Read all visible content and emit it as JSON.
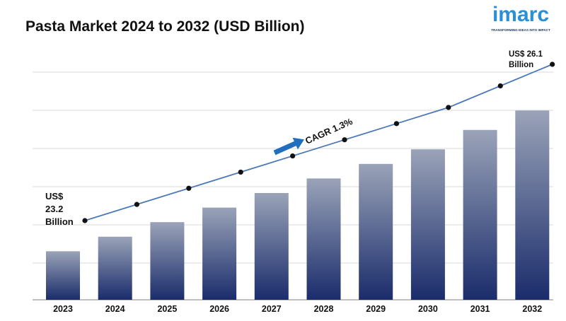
{
  "title": "Pasta Market 2024 to 2032 (USD Billion)",
  "logo": {
    "word": "imarc",
    "tagline": "TRANSFORMING IDEAS INTO IMPACT"
  },
  "colors": {
    "bar_top": "#9aa3b8",
    "bar_bottom": "#1a2c6b",
    "line": "#4a78b8",
    "point": "#111111",
    "grid": "#d9d9d9",
    "arrow": "#1f6fbd"
  },
  "chart_data": {
    "type": "bar",
    "title": "Pasta Market 2024 to 2032 (USD Billion)",
    "categories": [
      "2023",
      "2024",
      "2025",
      "2026",
      "2027",
      "2028",
      "2029",
      "2030",
      "2031",
      "2032"
    ],
    "series": [
      {
        "values": [
          23.2,
          23.5,
          23.8,
          24.1,
          24.4,
          24.7,
          25.0,
          25.3,
          25.7,
          26.1
        ]
      }
    ],
    "trend_line": true,
    "grid": true,
    "legend": "none",
    "annotations": {
      "start_label": [
        "US$",
        "23.2",
        "Billion"
      ],
      "end_label": [
        "US$ 26.1",
        "Billion"
      ],
      "cagr": "CAGR 1.3%"
    }
  }
}
